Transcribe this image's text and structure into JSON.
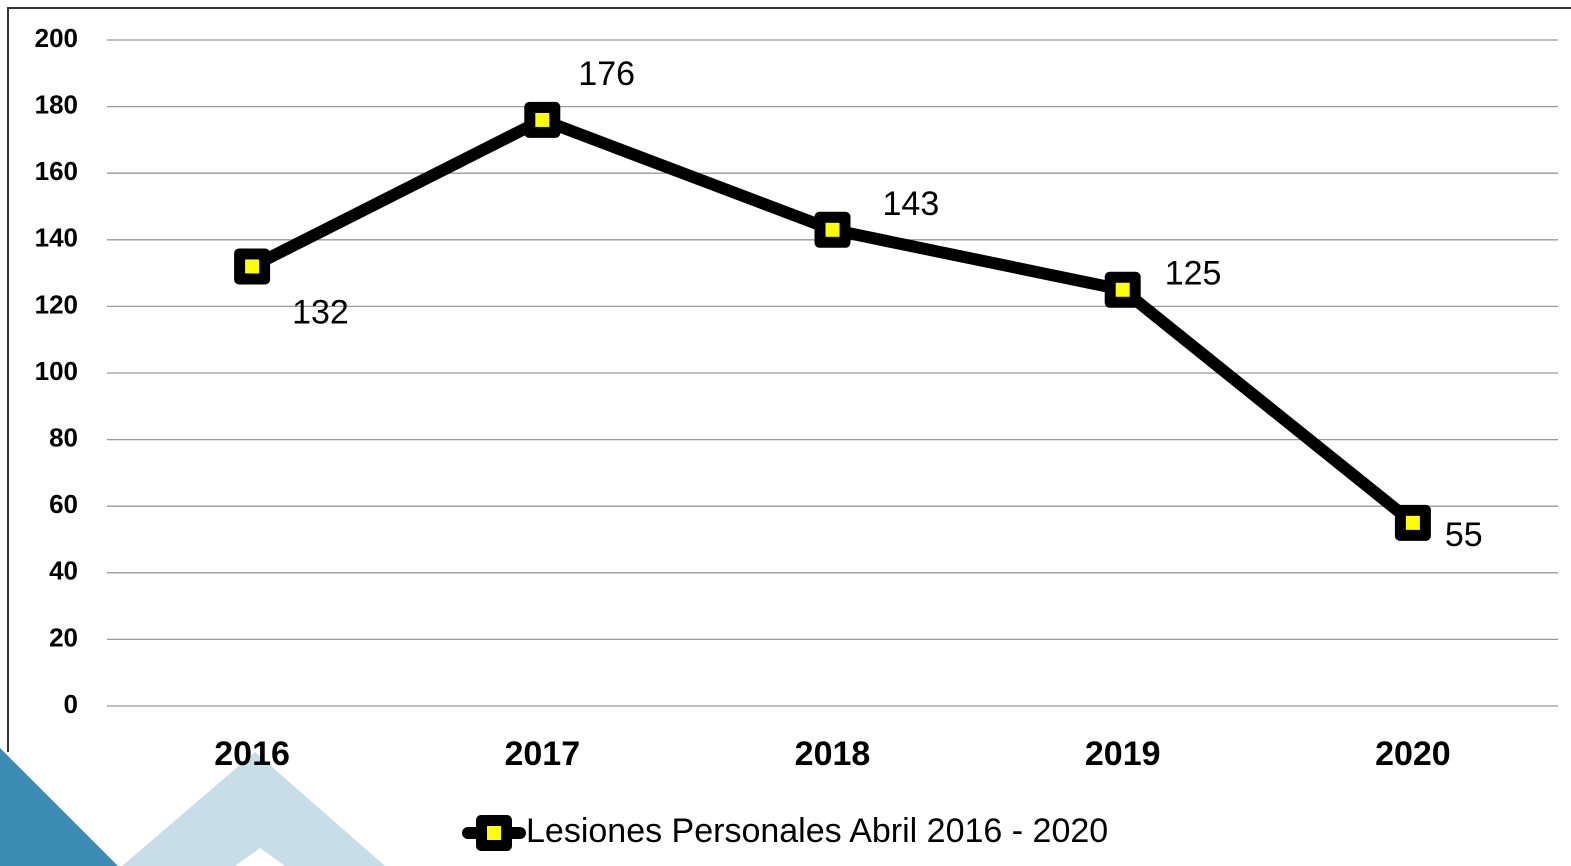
{
  "chart_data": {
    "type": "line",
    "categories": [
      "2016",
      "2017",
      "2018",
      "2019",
      "2020"
    ],
    "series": [
      {
        "name": "Lesiones Personales Abril 2016 - 2020",
        "color": "#000000",
        "marker_color": "#ffff00",
        "values": [
          132,
          176,
          143,
          125,
          55
        ]
      }
    ],
    "ylim": [
      0,
      200
    ],
    "yticks": [
      0,
      20,
      40,
      60,
      80,
      100,
      120,
      140,
      160,
      180,
      200
    ],
    "grid": true,
    "legend": "bottom"
  }
}
